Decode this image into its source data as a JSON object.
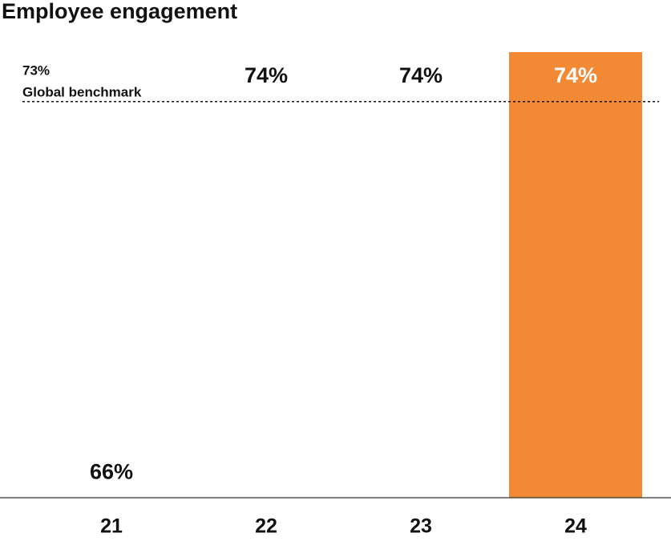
{
  "chart_data": {
    "type": "bar",
    "title": "Employee engagement",
    "categories": [
      "21",
      "22",
      "23",
      "24"
    ],
    "values": [
      66,
      74,
      74,
      74
    ],
    "value_labels": [
      "66%",
      "74%",
      "74%",
      "74%"
    ],
    "colors": [
      "#ffffff",
      "#ffffff",
      "#ffffff",
      "#f28a35"
    ],
    "ylim": [
      65,
      74
    ],
    "benchmark": {
      "value": 73,
      "label": "73%",
      "name": "Global benchmark"
    }
  }
}
